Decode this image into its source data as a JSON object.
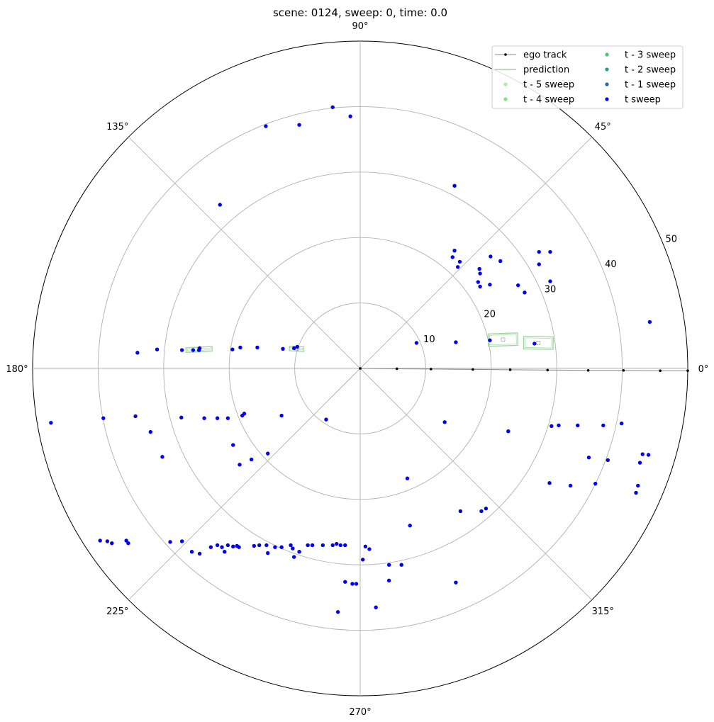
{
  "chart_data": {
    "type": "scatter",
    "projection": "polar",
    "title": "scene: 0124, sweep: 0, time: 0.0",
    "theta_ticks": [
      {
        "deg": 0,
        "label": "0°"
      },
      {
        "deg": 45,
        "label": "45°"
      },
      {
        "deg": 90,
        "label": "90°"
      },
      {
        "deg": 135,
        "label": "135°"
      },
      {
        "deg": 180,
        "label": "180°"
      },
      {
        "deg": 225,
        "label": "225°"
      },
      {
        "deg": 270,
        "label": "270°"
      },
      {
        "deg": 315,
        "label": "315°"
      }
    ],
    "r_ticks": [
      {
        "r": 10,
        "label": "10"
      },
      {
        "r": 20,
        "label": "20"
      },
      {
        "r": 30,
        "label": "30"
      },
      {
        "r": 40,
        "label": "40"
      },
      {
        "r": 50,
        "label": "50"
      }
    ],
    "rlim": [
      0,
      50
    ],
    "grid": true,
    "legend": {
      "placement": "top-right",
      "columns": 2,
      "entries": [
        {
          "label": "ego track",
          "kind": "line-marker",
          "color": "#888888"
        },
        {
          "label": "prediction",
          "kind": "line",
          "color": "#9fd39f"
        },
        {
          "label": "t - 5 sweep",
          "kind": "dot",
          "color": "#a8f0a0"
        },
        {
          "label": "t - 4 sweep",
          "kind": "dot",
          "color": "#82e07e"
        },
        {
          "label": "t - 3 sweep",
          "kind": "dot",
          "color": "#4cc37a"
        },
        {
          "label": "t - 2 sweep",
          "kind": "dot",
          "color": "#2e9a86"
        },
        {
          "label": "t - 1 sweep",
          "kind": "dot",
          "color": "#2568a5"
        },
        {
          "label": "t sweep",
          "kind": "dot",
          "color": "#0000ee"
        }
      ]
    },
    "ego_track": {
      "name": "ego track",
      "color": "#000000",
      "points": [
        [
          0,
          0
        ],
        [
          5.6,
          -0.05
        ],
        [
          10.8,
          -0.1
        ],
        [
          17.2,
          -0.15
        ],
        [
          22.9,
          -0.2
        ],
        [
          28.6,
          -0.25
        ],
        [
          34.8,
          -0.3
        ],
        [
          40.2,
          -0.3
        ],
        [
          45.8,
          -0.35
        ],
        [
          50,
          -0.35
        ]
      ]
    },
    "predictions": [
      {
        "x": 21.8,
        "y": 4.4,
        "length": 4.5,
        "width": 1.9,
        "angle_deg": 2
      },
      {
        "x": 27.2,
        "y": 3.9,
        "length": 4.5,
        "width": 1.9,
        "angle_deg": -1
      },
      {
        "x": -24.6,
        "y": 2.9,
        "length": 4.0,
        "width": 0.7,
        "angle_deg": 3
      },
      {
        "x": -9.7,
        "y": 3.0,
        "length": 2.2,
        "width": 0.7,
        "angle_deg": -3
      }
    ],
    "series": [
      {
        "name": "t sweep",
        "color": "#0000ee",
        "points": [
          [
            -4.2,
            39.9
          ],
          [
            -1.5,
            38.5
          ],
          [
            -9.3,
            37.2
          ],
          [
            -14.4,
            37.0
          ],
          [
            -21.4,
            25.0
          ],
          [
            14.4,
            27.9
          ],
          [
            14.4,
            18.0
          ],
          [
            14.1,
            17.0
          ],
          [
            15.2,
            16.3
          ],
          [
            14.9,
            15.5
          ],
          [
            21.4,
            16.4
          ],
          [
            19.9,
            17.1
          ],
          [
            18.2,
            15.2
          ],
          [
            18.3,
            14.5
          ],
          [
            18.0,
            13.2
          ],
          [
            18.3,
            12.5
          ],
          [
            19.8,
            12.8
          ],
          [
            24.1,
            12.7
          ],
          [
            25.1,
            11.6
          ],
          [
            27.3,
            17.8
          ],
          [
            29.0,
            17.8
          ],
          [
            27.3,
            15.9
          ],
          [
            29.0,
            13.3
          ],
          [
            8.6,
            3.9
          ],
          [
            14.6,
            4.0
          ],
          [
            19.8,
            4.3
          ],
          [
            26.6,
            3.8
          ],
          [
            44.2,
            7.1
          ],
          [
            -34.0,
            2.4
          ],
          [
            -31.0,
            2.9
          ],
          [
            -27.2,
            2.8
          ],
          [
            -25.5,
            2.8
          ],
          [
            -24.5,
            3.1
          ],
          [
            -24.6,
            2.8
          ],
          [
            -19.5,
            2.9
          ],
          [
            -18.3,
            3.2
          ],
          [
            -15.7,
            3.2
          ],
          [
            -11.8,
            3.0
          ],
          [
            -10.1,
            3.1
          ],
          [
            -9.6,
            3.3
          ],
          [
            -47.2,
            -8.3
          ],
          [
            -39.2,
            -7.6
          ],
          [
            -34.3,
            -7.3
          ],
          [
            -32.0,
            -9.7
          ],
          [
            -30.2,
            -13.5
          ],
          [
            -27.3,
            -7.5
          ],
          [
            -23.8,
            -7.6
          ],
          [
            -21.8,
            -7.6
          ],
          [
            -20.2,
            -7.6
          ],
          [
            -18.0,
            -7.2
          ],
          [
            -17.7,
            -6.9
          ],
          [
            -12.0,
            -7.2
          ],
          [
            -19.4,
            -11.7
          ],
          [
            -18.4,
            -14.7
          ],
          [
            -16.6,
            -13.9
          ],
          [
            -14.1,
            -13.0
          ],
          [
            -5.2,
            -7.8
          ],
          [
            12.9,
            -8.2
          ],
          [
            22.6,
            -9.6
          ],
          [
            29.2,
            -8.8
          ],
          [
            30.3,
            -8.7
          ],
          [
            33.2,
            -8.7
          ],
          [
            37.1,
            -8.7
          ],
          [
            39.9,
            -8.4
          ],
          [
            34.9,
            -13.6
          ],
          [
            37.8,
            -14.0
          ],
          [
            42.7,
            -14.4
          ],
          [
            43.1,
            -13.1
          ],
          [
            44.0,
            -13.2
          ],
          [
            28.9,
            -17.5
          ],
          [
            32.1,
            -17.9
          ],
          [
            35.9,
            -17.6
          ],
          [
            42.4,
            -17.9
          ],
          [
            42.1,
            -19.0
          ],
          [
            7.2,
            -16.8
          ],
          [
            15.3,
            -21.8
          ],
          [
            19.2,
            -21.4
          ],
          [
            18.5,
            -21.8
          ],
          [
            7.6,
            -24.0
          ],
          [
            -39.7,
            -26.3
          ],
          [
            -38.6,
            -26.4
          ],
          [
            -37.9,
            -26.7
          ],
          [
            -35.7,
            -26.3
          ],
          [
            -35.4,
            -26.7
          ],
          [
            -29.0,
            -26.5
          ],
          [
            -27.2,
            -26.4
          ],
          [
            -25.7,
            -28.0
          ],
          [
            -24.5,
            -28.3
          ],
          [
            -22.8,
            -27.3
          ],
          [
            -21.8,
            -27.0
          ],
          [
            -21.1,
            -27.3
          ],
          [
            -20.7,
            -28.0
          ],
          [
            -20.2,
            -27.0
          ],
          [
            -19.4,
            -27.2
          ],
          [
            -18.8,
            -27.1
          ],
          [
            -18.5,
            -27.3
          ],
          [
            -16.2,
            -27.1
          ],
          [
            -15.4,
            -27.0
          ],
          [
            -14.3,
            -27.0
          ],
          [
            -14.1,
            -28.2
          ],
          [
            -13.0,
            -27.3
          ],
          [
            -12.0,
            -27.3
          ],
          [
            -10.6,
            -27.0
          ],
          [
            -10.3,
            -27.5
          ],
          [
            -10.1,
            -28.8
          ],
          [
            -9.3,
            -28.0
          ],
          [
            -8.0,
            -27.0
          ],
          [
            -7.3,
            -27.0
          ],
          [
            -5.7,
            -27.0
          ],
          [
            -4.2,
            -27.0
          ],
          [
            -3.6,
            -26.8
          ],
          [
            -3.0,
            -27.0
          ],
          [
            -2.3,
            -27.0
          ],
          [
            0.8,
            -27.2
          ],
          [
            1.4,
            -27.6
          ],
          [
            0.4,
            -29.2
          ],
          [
            4.4,
            -30.0
          ],
          [
            6.3,
            -30.0
          ],
          [
            -2.3,
            -32.6
          ],
          [
            -1.2,
            -32.9
          ],
          [
            -0.6,
            -32.9
          ],
          [
            4.4,
            -32.4
          ],
          [
            2.4,
            -36.5
          ],
          [
            -3.4,
            -37.2
          ],
          [
            14.6,
            -32.7
          ]
        ]
      }
    ]
  }
}
